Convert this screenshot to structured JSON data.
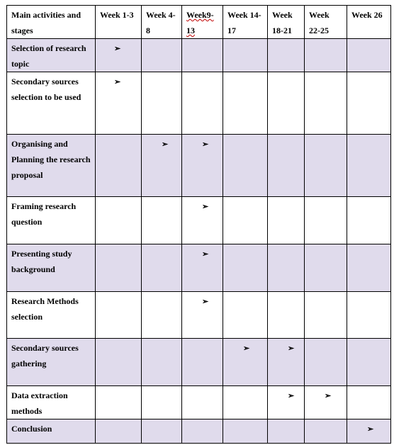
{
  "columns": [
    "Main activities and stages",
    "Week 1-3",
    "Week 4-8",
    "Week9-13",
    "Week 14-17",
    "Week 18-21",
    "Week 22-25",
    "Week 26"
  ],
  "marker": "➢",
  "rows": [
    {
      "activity": "Selection of research topic",
      "marks": [
        1,
        0,
        0,
        0,
        0,
        0,
        0
      ]
    },
    {
      "activity": "Secondary sources selection to be used",
      "marks": [
        1,
        0,
        0,
        0,
        0,
        0,
        0
      ]
    },
    {
      "activity": "Organising and Planning the research proposal",
      "marks": [
        0,
        1,
        1,
        0,
        0,
        0,
        0
      ]
    },
    {
      "activity": "Framing research question",
      "marks": [
        0,
        0,
        1,
        0,
        0,
        0,
        0
      ]
    },
    {
      "activity": "Presenting study background",
      "marks": [
        0,
        0,
        1,
        0,
        0,
        0,
        0
      ]
    },
    {
      "activity": "Research Methods selection",
      "marks": [
        0,
        0,
        1,
        0,
        0,
        0,
        0
      ]
    },
    {
      "activity": "Secondary sources gathering",
      "marks": [
        0,
        0,
        0,
        1,
        1,
        0,
        0
      ]
    },
    {
      "activity": "Data extraction methods",
      "marks": [
        0,
        0,
        0,
        0,
        1,
        1,
        0
      ]
    },
    {
      "activity": "Conclusion",
      "marks": [
        0,
        0,
        0,
        0,
        0,
        0,
        1
      ]
    }
  ]
}
